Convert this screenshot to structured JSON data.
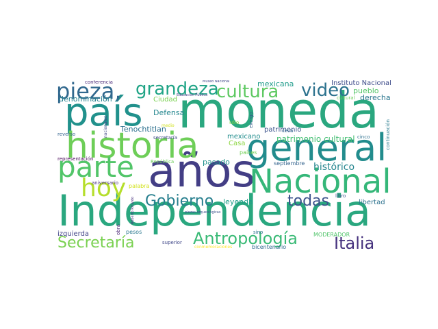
{
  "words": [
    {
      "text": "moneda",
      "color": "#2aa77f"
    },
    {
      "text": "Independencia",
      "color": "#2aa77f"
    },
    {
      "text": "país",
      "color": "#21918c"
    },
    {
      "text": "años",
      "color": "#433e85"
    },
    {
      "text": "historia",
      "color": "#6ece58"
    },
    {
      "text": "general",
      "color": "#228c8d"
    },
    {
      "text": "Nacional",
      "color": "#35b779"
    },
    {
      "text": "parte",
      "color": "#52c569"
    },
    {
      "text": "hoy",
      "color": "#b5de2b"
    },
    {
      "text": "pieza,",
      "color": "#31688e"
    },
    {
      "text": "grandeza",
      "color": "#20a486"
    },
    {
      "text": "cultura",
      "color": "#5ec962"
    },
    {
      "text": "video",
      "color": "#2c728e"
    },
    {
      "text": "Gobierno",
      "color": "#277f8e"
    },
    {
      "text": "todas",
      "color": "#3b528b"
    },
    {
      "text": "Antropología",
      "color": "#3aba76"
    },
    {
      "text": "Italia",
      "color": "#46327e"
    },
    {
      "text": "Secretaría",
      "color": "#7ad151"
    },
    {
      "text": "histórico",
      "color": "#25858e"
    },
    {
      "text": "patrimonio cultural",
      "color": "#42be71"
    },
    {
      "text": "Tenochtitlan",
      "color": "#2d708e"
    },
    {
      "text": "Defensa",
      "color": "#24868e"
    },
    {
      "text": "pasado",
      "color": "#21918c"
    },
    {
      "text": "leyenda",
      "color": "#1f9e89"
    },
    {
      "text": "mexicana",
      "color": "#1e9b8a"
    },
    {
      "text": "Instituto Nacional",
      "color": "#3e4c8a"
    },
    {
      "text": "pueblo",
      "color": "#54c568"
    },
    {
      "text": "derecha",
      "color": "#2a768e"
    },
    {
      "text": "denominación",
      "color": "#27808e"
    },
    {
      "text": "Ciudad",
      "color": "#7ad151"
    },
    {
      "text": "mexicano",
      "color": "#228d8d"
    },
    {
      "text": "Casa",
      "color": "#8ed645"
    },
    {
      "text": "patrimonio",
      "color": "#3b528b"
    },
    {
      "text": "conferencia",
      "color": "#482878"
    },
    {
      "text": "septiembre",
      "color": "#33638d"
    },
    {
      "text": "izquierda",
      "color": "#414487"
    },
    {
      "text": "libertad",
      "color": "#2c728e"
    },
    {
      "text": "MODERADOR",
      "color": "#50c46a"
    },
    {
      "text": "bicentenario",
      "color": "#31688e"
    },
    {
      "text": "representación",
      "color": "#440154"
    },
    {
      "text": "aniversario",
      "color": "#472d7b"
    },
    {
      "text": "palabra",
      "color": "#d2e21b"
    },
    {
      "text": "reverso",
      "color": "#33638d"
    },
    {
      "text": "República",
      "color": "#6ccd5a"
    },
    {
      "text": "pesos",
      "color": "#2a788e"
    },
    {
      "text": "superior",
      "color": "#3f4788"
    },
    {
      "text": "sino",
      "color": "#2c728e"
    },
    {
      "text": "libro",
      "color": "#3b528b"
    },
    {
      "text": "cinco",
      "color": "#2d708e"
    },
    {
      "text": "países",
      "color": "#73d056"
    },
    {
      "text": "ceca",
      "color": "#31688e"
    },
    {
      "text": "sólo",
      "color": "#84d44b"
    },
    {
      "text": "secretaría",
      "color": "#3e4989"
    },
    {
      "text": "medio",
      "color": "#d0e11c"
    },
    {
      "text": "cultural",
      "color": "#6ccd5a"
    },
    {
      "text": "Museo Nacional",
      "color": "#3f4788"
    },
    {
      "text": "Educación Pública",
      "color": "#424086"
    },
    {
      "text": "piezas arqueológicas",
      "color": "#3b528b"
    },
    {
      "text": "conmemoraciones",
      "color": "#fde725"
    },
    {
      "text": "exergo",
      "color": "#355f8d"
    },
    {
      "text": "nacionales",
      "color": "#404688"
    },
    {
      "text": "obra",
      "color": "#482173"
    },
    {
      "text": "Roberto Ricardo",
      "color": "#46307e"
    },
    {
      "text": "continuación",
      "color": "#297b8e"
    }
  ]
}
